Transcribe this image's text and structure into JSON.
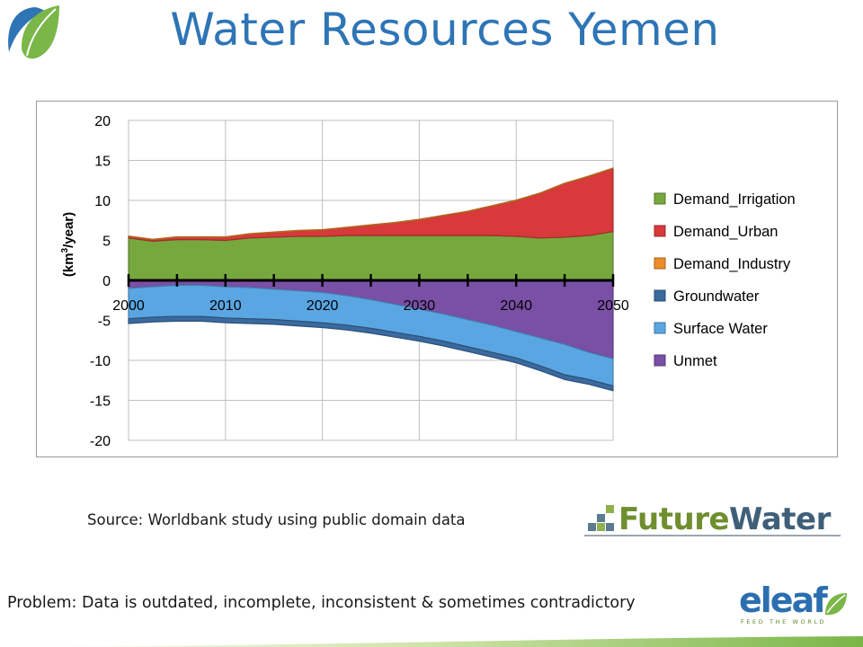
{
  "slide": {
    "title": "Water Resources Yemen",
    "source": "Source: Worldbank study using public domain data",
    "problem": "Problem: Data is outdated, incomplete, inconsistent & sometimes contradictory"
  },
  "logos": {
    "futurewater_part1": "Future",
    "futurewater_part2": "Water",
    "eleaf": "eleaf",
    "eleaf_tagline": "FEED THE WORLD"
  },
  "colors": {
    "title": "#2e75b6",
    "irrigation": "#76a83e",
    "urban": "#d8393a",
    "industry": "#ee8c2a",
    "groundwater": "#3a6a9f",
    "surface": "#5aa6e3",
    "unmet": "#7a4fa6"
  },
  "chart_data": {
    "type": "area",
    "ylabel_main": "(km",
    "ylabel_sup": "3",
    "ylabel_end": "/year)",
    "ylim": [
      -20,
      20
    ],
    "y_ticks": [
      20,
      15,
      10,
      5,
      0,
      -5,
      -10,
      -15,
      -20
    ],
    "xlim": [
      2000,
      2050
    ],
    "x_ticks": [
      2000,
      2010,
      2020,
      2030,
      2040,
      2050
    ],
    "grid": true,
    "legend_position": "right",
    "x": [
      2000,
      2002.5,
      2005,
      2007.5,
      2010,
      2012.5,
      2015,
      2017.5,
      2020,
      2022.5,
      2025,
      2027.5,
      2030,
      2032.5,
      2035,
      2037.5,
      2040,
      2042.5,
      2045,
      2047.5,
      2050
    ],
    "series": [
      {
        "name": "Demand_Irrigation",
        "color_key": "irrigation",
        "sign": 1,
        "values": [
          5.3,
          4.9,
          5.1,
          5.1,
          5.0,
          5.3,
          5.4,
          5.5,
          5.5,
          5.6,
          5.6,
          5.6,
          5.6,
          5.6,
          5.6,
          5.6,
          5.5,
          5.3,
          5.4,
          5.6,
          6.1
        ]
      },
      {
        "name": "Demand_Urban",
        "color_key": "urban",
        "sign": 1,
        "values": [
          0.2,
          0.2,
          0.3,
          0.3,
          0.4,
          0.5,
          0.6,
          0.7,
          0.8,
          1.0,
          1.3,
          1.6,
          2.0,
          2.5,
          3.0,
          3.7,
          4.5,
          5.6,
          6.7,
          7.4,
          7.9
        ]
      },
      {
        "name": "Demand_Industry",
        "color_key": "industry",
        "sign": 1,
        "values": [
          0.05,
          0.05,
          0.05,
          0.05,
          0.05,
          0.05,
          0.05,
          0.05,
          0.05,
          0.05,
          0.05,
          0.05,
          0.05,
          0.05,
          0.05,
          0.05,
          0.05,
          0.05,
          0.05,
          0.05,
          0.05
        ]
      },
      {
        "name": "Unmet",
        "color_key": "unmet",
        "sign": -1,
        "values": [
          1.0,
          0.8,
          0.6,
          0.6,
          0.8,
          0.9,
          1.1,
          1.3,
          1.5,
          1.9,
          2.4,
          3.0,
          3.6,
          4.2,
          4.9,
          5.6,
          6.4,
          7.2,
          8.0,
          9.0,
          9.8
        ]
      },
      {
        "name": "Surface Water",
        "color_key": "surface",
        "sign": -1,
        "values": [
          3.8,
          3.8,
          3.9,
          3.9,
          3.9,
          3.9,
          3.8,
          3.8,
          3.8,
          3.7,
          3.6,
          3.5,
          3.4,
          3.4,
          3.4,
          3.4,
          3.3,
          3.5,
          3.8,
          3.4,
          3.4
        ]
      },
      {
        "name": "Groundwater",
        "color_key": "groundwater",
        "sign": -1,
        "values": [
          0.6,
          0.6,
          0.6,
          0.6,
          0.6,
          0.6,
          0.6,
          0.6,
          0.6,
          0.6,
          0.6,
          0.6,
          0.6,
          0.6,
          0.6,
          0.6,
          0.6,
          0.6,
          0.6,
          0.6,
          0.6
        ]
      }
    ],
    "legend": [
      "Demand_Irrigation",
      "Demand_Urban",
      "Demand_Industry",
      "Groundwater",
      "Surface Water",
      "Unmet"
    ],
    "legend_colors": [
      "irrigation",
      "urban",
      "industry",
      "groundwater",
      "surface",
      "unmet"
    ]
  }
}
